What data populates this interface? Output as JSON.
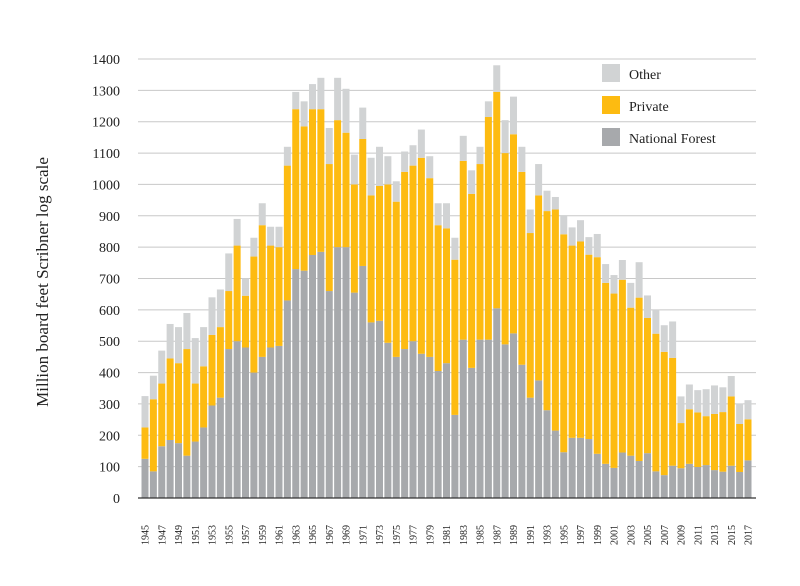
{
  "chart_data": {
    "type": "bar",
    "stacked": true,
    "title": "",
    "xlabel": "",
    "ylabel": "Million board feet Scribner log scale",
    "ylim": [
      0,
      1400
    ],
    "yticks": [
      0,
      100,
      200,
      300,
      400,
      500,
      600,
      700,
      800,
      900,
      1000,
      1100,
      1200,
      1300,
      1400
    ],
    "grid": true,
    "legend_position": "top-right",
    "x_start": 1945,
    "x_end": 2017,
    "x_tick_step": 2,
    "series": [
      {
        "name": "National Forest",
        "color": "#a7a9ac",
        "values": [
          125,
          85,
          165,
          185,
          175,
          135,
          180,
          225,
          295,
          320,
          475,
          500,
          480,
          400,
          450,
          480,
          485,
          630,
          730,
          725,
          775,
          785,
          660,
          800,
          800,
          655,
          740,
          560,
          565,
          495,
          450,
          475,
          500,
          460,
          450,
          405,
          430,
          265,
          505,
          415,
          505,
          505,
          605,
          490,
          525,
          425,
          320,
          375,
          280,
          215,
          146,
          192,
          192,
          188,
          141,
          109,
          96,
          145,
          135,
          118,
          143,
          85,
          73,
          103,
          95,
          109,
          99,
          105,
          89,
          84,
          103,
          83,
          120
        ]
      },
      {
        "name": "Private",
        "color": "#fdbb11",
        "values": [
          100,
          230,
          200,
          260,
          255,
          340,
          185,
          195,
          225,
          225,
          185,
          305,
          165,
          370,
          420,
          325,
          315,
          430,
          510,
          460,
          465,
          455,
          405,
          405,
          365,
          345,
          405,
          405,
          430,
          505,
          495,
          565,
          560,
          625,
          570,
          465,
          430,
          495,
          570,
          555,
          560,
          710,
          690,
          610,
          635,
          615,
          525,
          590,
          635,
          705,
          695,
          613,
          626,
          588,
          627,
          577,
          556,
          551,
          472,
          521,
          431,
          439,
          393,
          344,
          144,
          174,
          174,
          156,
          179,
          190,
          221,
          153,
          131
        ]
      },
      {
        "name": "Other",
        "color": "#d1d3d4",
        "values": [
          100,
          75,
          105,
          110,
          115,
          115,
          145,
          125,
          120,
          120,
          120,
          85,
          55,
          60,
          70,
          60,
          65,
          60,
          55,
          80,
          80,
          100,
          115,
          135,
          140,
          95,
          100,
          120,
          125,
          90,
          65,
          65,
          65,
          90,
          70,
          70,
          80,
          70,
          80,
          75,
          55,
          50,
          85,
          105,
          120,
          80,
          75,
          100,
          65,
          40,
          61,
          58,
          68,
          56,
          74,
          60,
          59,
          63,
          79,
          113,
          72,
          76,
          85,
          116,
          85,
          79,
          71,
          86,
          91,
          79,
          65,
          65,
          61
        ]
      }
    ],
    "legend": [
      "Other",
      "Private",
      "National Forest"
    ]
  }
}
